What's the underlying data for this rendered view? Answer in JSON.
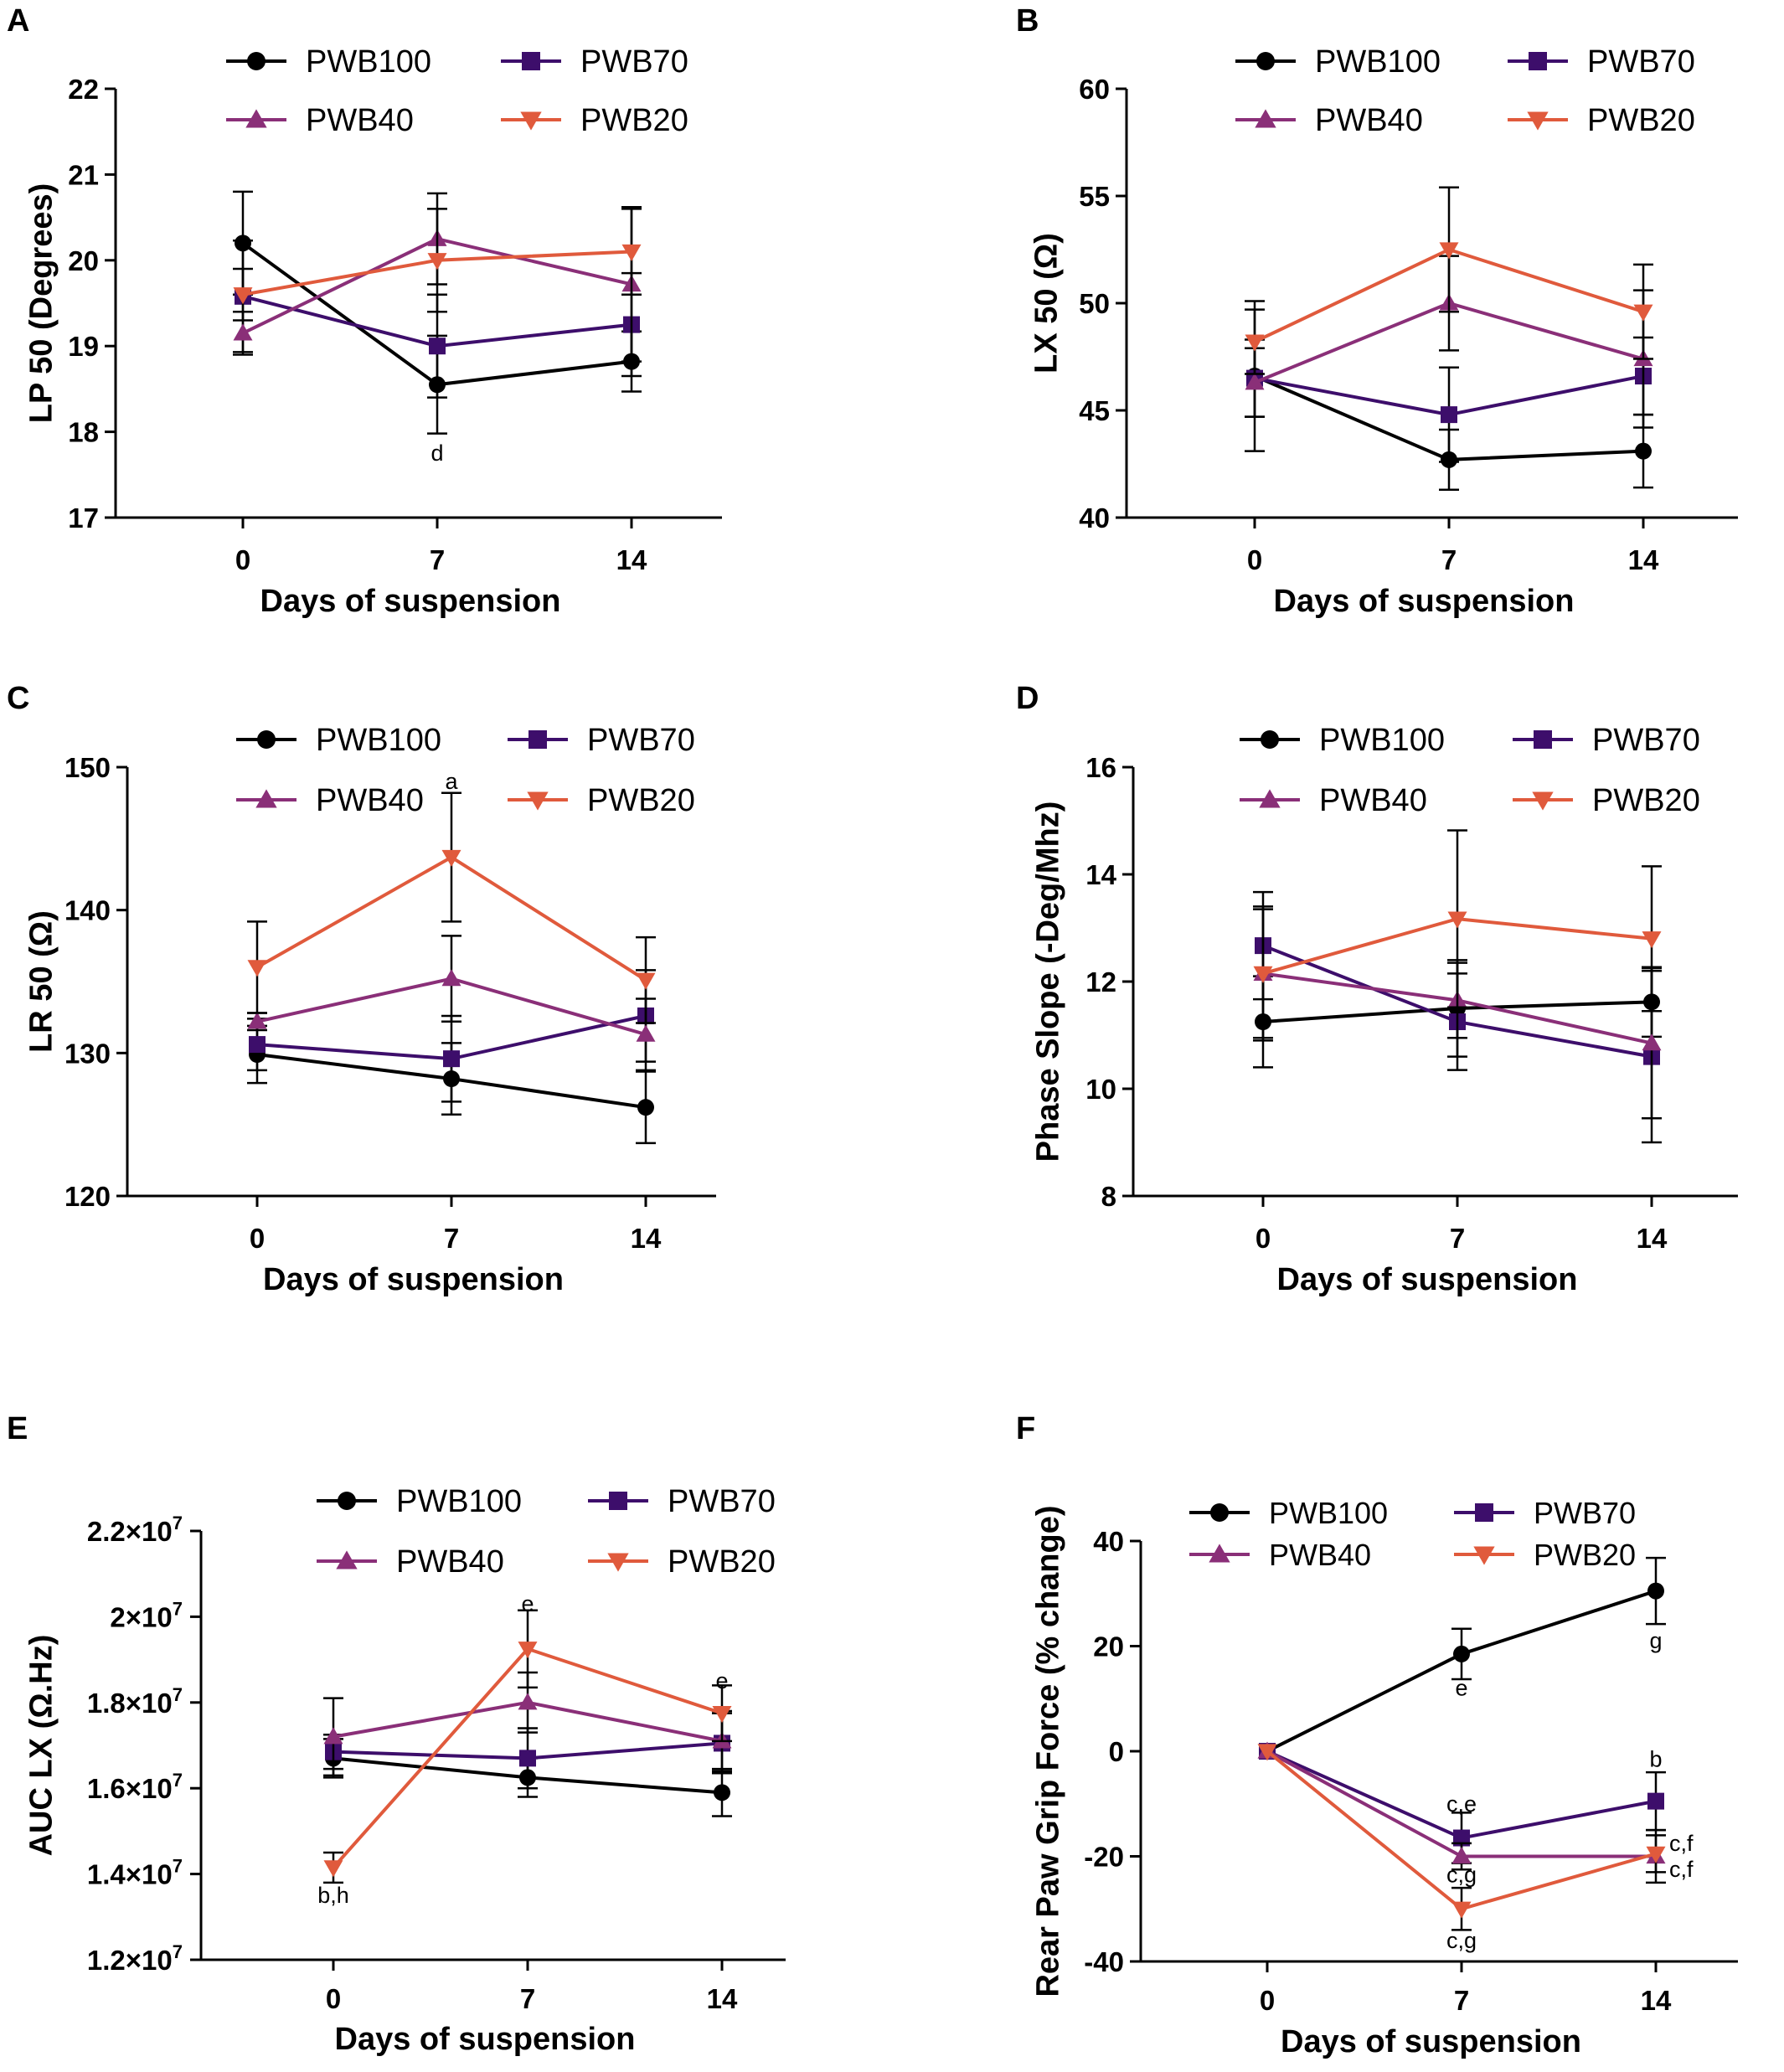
{
  "colors": {
    "PWB100": "#000000",
    "PWB70": "#3d0e6b",
    "PWB40": "#8a2f78",
    "PWB20": "#e05a3c"
  },
  "chart_data": [
    {
      "panel": "A",
      "type": "line",
      "xlabel": "Days of suspension",
      "ylabel": "LP 50 (Degrees)",
      "categories": [
        "0",
        "7",
        "14"
      ],
      "ylim": [
        17,
        22
      ],
      "yticks": [
        "17",
        "18",
        "19",
        "20",
        "21",
        "22"
      ],
      "legend": [
        "PWB100",
        "PWB70",
        "PWB40",
        "PWB20"
      ],
      "series": [
        {
          "name": "PWB100",
          "values": [
            20.2,
            18.55,
            18.82
          ],
          "errors": [
            0.6,
            0.57,
            0.35
          ]
        },
        {
          "name": "PWB70",
          "values": [
            19.58,
            19.0,
            19.25
          ],
          "errors": [
            0.65,
            0.6,
            0.6
          ]
        },
        {
          "name": "PWB40",
          "values": [
            19.15,
            20.25,
            19.72
          ],
          "errors": [
            0.25,
            0.53,
            0.9
          ]
        },
        {
          "name": "PWB20",
          "values": [
            19.6,
            20.0,
            20.1
          ],
          "errors": [
            0.3,
            0.6,
            0.5
          ]
        }
      ],
      "annotations": [
        {
          "text": "d",
          "x": "7",
          "y": 17.75
        }
      ]
    },
    {
      "panel": "B",
      "type": "line",
      "xlabel": "Days of suspension",
      "ylabel": "LX 50 (Ω)",
      "categories": [
        "0",
        "7",
        "14"
      ],
      "ylim": [
        40,
        60
      ],
      "yticks": [
        "40",
        "45",
        "50",
        "55",
        "60"
      ],
      "legend": [
        "PWB100",
        "PWB70",
        "PWB40",
        "PWB20"
      ],
      "series": [
        {
          "name": "PWB100",
          "values": [
            46.6,
            42.7,
            43.1
          ],
          "errors": [
            3.5,
            1.4,
            1.7
          ]
        },
        {
          "name": "PWB70",
          "values": [
            46.5,
            44.8,
            46.6
          ],
          "errors": [
            1.8,
            2.2,
            1.8
          ]
        },
        {
          "name": "PWB40",
          "values": [
            46.3,
            50.0,
            47.4
          ],
          "errors": [
            1.6,
            2.2,
            3.2
          ]
        },
        {
          "name": "PWB20",
          "values": [
            48.2,
            52.5,
            49.6
          ],
          "errors": [
            1.5,
            2.9,
            2.2
          ]
        }
      ],
      "annotations": []
    },
    {
      "panel": "C",
      "type": "line",
      "xlabel": "Days of suspension",
      "ylabel": "LR 50 (Ω)",
      "categories": [
        "0",
        "7",
        "14"
      ],
      "ylim": [
        120,
        150
      ],
      "yticks": [
        "120",
        "130",
        "140",
        "150"
      ],
      "legend": [
        "PWB100",
        "PWB70",
        "PWB40",
        "PWB20"
      ],
      "series": [
        {
          "name": "PWB100",
          "values": [
            129.9,
            128.2,
            126.2
          ],
          "errors": [
            2.0,
            2.5,
            2.5
          ]
        },
        {
          "name": "PWB70",
          "values": [
            130.6,
            129.6,
            132.6
          ],
          "errors": [
            1.8,
            3.0,
            3.2
          ]
        },
        {
          "name": "PWB40",
          "values": [
            132.2,
            135.2,
            131.3
          ],
          "errors": [
            0.6,
            3.0,
            2.5
          ]
        },
        {
          "name": "PWB20",
          "values": [
            136.0,
            143.7,
            135.1
          ],
          "errors": [
            3.2,
            4.5,
            3.0
          ]
        }
      ],
      "annotations": [
        {
          "text": "a",
          "x": "7",
          "y": 149.0
        }
      ]
    },
    {
      "panel": "D",
      "type": "line",
      "xlabel": "Days of suspension",
      "ylabel": "Phase Slope (-Deg/Mhz)",
      "categories": [
        "0",
        "7",
        "14"
      ],
      "ylim": [
        8,
        16
      ],
      "yticks": [
        "8",
        "10",
        "12",
        "14",
        "16"
      ],
      "legend": [
        "PWB100",
        "PWB70",
        "PWB40",
        "PWB20"
      ],
      "series": [
        {
          "name": "PWB100",
          "values": [
            11.25,
            11.5,
            11.62
          ],
          "errors": [
            0.85,
            0.9,
            0.65
          ]
        },
        {
          "name": "PWB70",
          "values": [
            12.67,
            11.25,
            10.6
          ],
          "errors": [
            1.0,
            0.9,
            1.6
          ]
        },
        {
          "name": "PWB40",
          "values": [
            12.15,
            11.65,
            10.85
          ],
          "errors": [
            1.25,
            0.7,
            1.4
          ]
        },
        {
          "name": "PWB20",
          "values": [
            12.15,
            13.17,
            12.8
          ],
          "errors": [
            1.2,
            1.65,
            1.35
          ]
        }
      ],
      "annotations": []
    },
    {
      "panel": "E",
      "type": "line",
      "xlabel": "Days of suspension",
      "ylabel": "AUC LX (Ω.Hz)",
      "categories": [
        "0",
        "7",
        "14"
      ],
      "ylim": [
        12000000,
        22000000
      ],
      "yticks": [
        {
          "m": "1.2×10",
          "e": "7"
        },
        {
          "m": "1.4×10",
          "e": "7"
        },
        {
          "m": "1.6×10",
          "e": "7"
        },
        {
          "m": "1.8×10",
          "e": "7"
        },
        {
          "m": "2×10",
          "e": "7"
        },
        {
          "m": "2.2×10",
          "e": "7"
        }
      ],
      "legend": [
        "PWB100",
        "PWB70",
        "PWB40",
        "PWB20"
      ],
      "series": [
        {
          "name": "PWB100",
          "values": [
            16700000,
            16250000,
            15900000
          ],
          "errors": [
            450000,
            450000,
            550000
          ]
        },
        {
          "name": "PWB70",
          "values": [
            16850000,
            16700000,
            17050000
          ],
          "errors": [
            400000,
            700000,
            700000
          ]
        },
        {
          "name": "PWB40",
          "values": [
            17200000,
            18000000,
            17100000
          ],
          "errors": [
            900000,
            700000,
            700000
          ]
        },
        {
          "name": "PWB20",
          "values": [
            14150000,
            19250000,
            17750000
          ],
          "errors": [
            350000,
            900000,
            650000
          ]
        }
      ],
      "annotations": [
        {
          "text": "b,h",
          "x": "0",
          "y": 13500000
        },
        {
          "text": "e",
          "x": "7",
          "y": 20300000
        },
        {
          "text": "e",
          "x": "14",
          "y": 18500000
        }
      ]
    },
    {
      "panel": "F",
      "type": "line",
      "xlabel": "Days of suspension",
      "ylabel": "Rear Paw Grip  Force (% change)",
      "categories": [
        "0",
        "7",
        "14"
      ],
      "ylim": [
        -40,
        40
      ],
      "yticks": [
        "-40",
        "-20",
        "0",
        "20",
        "40"
      ],
      "legend": [
        "PWB100",
        "PWB70",
        "PWB40",
        "PWB20"
      ],
      "series": [
        {
          "name": "PWB100",
          "values": [
            0,
            18.5,
            30.5
          ],
          "errors": [
            0,
            4.8,
            6.3
          ]
        },
        {
          "name": "PWB70",
          "values": [
            0,
            -16.5,
            -9.5
          ],
          "errors": [
            0,
            4.8,
            5.5
          ]
        },
        {
          "name": "PWB40",
          "values": [
            0,
            -20.0,
            -20.0
          ],
          "errors": [
            0,
            2.5,
            5.0
          ]
        },
        {
          "name": "PWB20",
          "values": [
            0,
            -30.0,
            -19.5
          ],
          "errors": [
            0,
            4.0,
            3.5
          ]
        }
      ],
      "annotations": [
        {
          "text": "e",
          "x": "7",
          "y": 12.0
        },
        {
          "text": "g",
          "x": "14",
          "y": 21.0
        },
        {
          "text": "c,e",
          "x": "7",
          "y": -10.0
        },
        {
          "text": "c,g",
          "x": "7",
          "y": -23.5
        },
        {
          "text": "c,g",
          "x": "7",
          "y": -36.0
        },
        {
          "text": "b",
          "x": "14",
          "y": -1.5
        },
        {
          "text": "c,f",
          "x": "14",
          "y": -17.5
        },
        {
          "text": "c,f",
          "x": "14",
          "y": -22.5
        }
      ]
    }
  ]
}
